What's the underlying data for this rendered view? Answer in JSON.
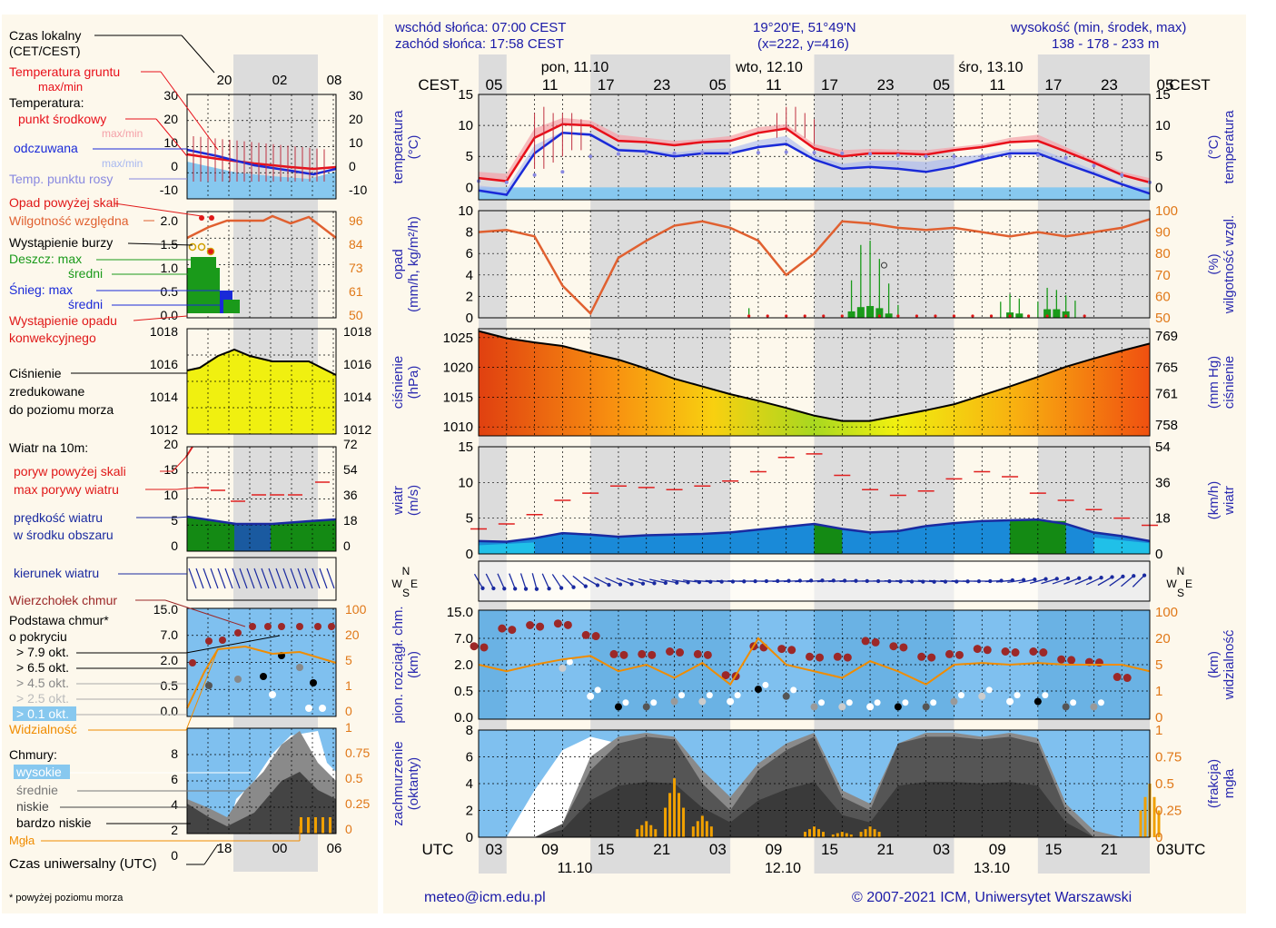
{
  "header": {
    "sunrise": "wschód słońca: 07:00 CEST",
    "sunset": "zachód słońca: 17:58 CEST",
    "coords": "19°20'E, 51°49'N",
    "grid": "(x=222, y=416)",
    "elev_label": "wysokość (min, środek, max)",
    "elev_values": "138 - 178 - 233 m"
  },
  "footer": {
    "email": "meteo@icm.edu.pl",
    "copyright": "© 2007-2021 ICM, Uniwersytet Warszawski",
    "footnote": "* powyżej poziomu morza"
  },
  "colors": {
    "frame_bg": "#fdf8ec",
    "night_band": "#dcdcdc",
    "temp_red": "#e8101a",
    "temp_blue": "#1a2ad8",
    "dew": "#8888e0",
    "humidity": "#e06030",
    "rain": "#1a9a1a",
    "alert_red": "#e01818",
    "wind_dark": "#1a2aa0",
    "cloud_bg": "#7fc0ef",
    "cloud_top": "#9c2828",
    "visibility": "#f08c00",
    "axis_blue": "#2a2ab0",
    "orange_axis": "#e07818"
  },
  "legend": {
    "local_time": [
      "Czas lokalny",
      "(CET/CEST)"
    ],
    "temp_ground": [
      "Temperatura gruntu",
      "max/min"
    ],
    "temperature": "Temperatura:",
    "temp_mid": "punkt środkowy",
    "temp_max": "max/min",
    "feels": "odczuwana",
    "feels_max": "max/min",
    "dew": "Temp. punktu rosy",
    "precip_over": "Opad powyżej skali",
    "humidity": "Wilgotność względna",
    "storm": "Wystąpienie burzy",
    "rain_max": "Deszcz: max",
    "rain_mean": "średni",
    "snow_max": "Śnieg:   max",
    "snow_mean": "średni",
    "convective": [
      "Wystąpienie opadu",
      "konwekcyjnego"
    ],
    "pressure": [
      "Ciśnienie",
      "zredukowane",
      "do poziomu morza"
    ],
    "wind_at": "Wiatr na 10m:",
    "gust_over": "poryw powyżej skali",
    "gust_max": "max porywy wiatru",
    "wind_speed": [
      "prędkość wiatru",
      "w środku obszaru"
    ],
    "wind_dir": "kierunek wiatru",
    "cloud_top": "Wierzchołek chmur",
    "cloud_base": [
      "Podstawa chmur*",
      "o pokryciu"
    ],
    "okt": [
      "> 7.9 okt.",
      "> 6.5 okt.",
      "> 4.5 okt.",
      "> 2.5 okt.",
      "> 0.1 okt."
    ],
    "visibility": "Widzialność",
    "clouds": "Chmury:",
    "cl_high": "wysokie",
    "cl_mid": "średnie",
    "cl_low": "niskie",
    "cl_vlow": "bardzo niskie",
    "fog": "Mgła",
    "utc": "Czas uniwersalny (UTC)"
  },
  "axes": {
    "cest": "CEST",
    "utc": "UTC",
    "local_hours": [
      "05",
      "11",
      "17",
      "23",
      "05",
      "11",
      "17",
      "23",
      "05",
      "11",
      "17",
      "23",
      "05"
    ],
    "utc_hours": [
      "03",
      "09",
      "15",
      "21",
      "03",
      "09",
      "15",
      "21",
      "03",
      "09",
      "15",
      "21",
      "03"
    ],
    "days_top": [
      "pon, 11.10",
      "wto, 12.10",
      "śro, 13.10"
    ],
    "days_bottom": [
      "11.10",
      "12.10",
      "13.10"
    ],
    "legend_local": [
      "20",
      "02",
      "08"
    ],
    "legend_utc": [
      "18",
      "00",
      "06"
    ],
    "temp_left": "temperatura\n(°C)",
    "temp_right": "(°C)\ntemperatura",
    "precip_left": "opad\n(mm/h, kg/m²/h)",
    "precip_right": "(%)\nwilgotność wzgl.",
    "press_left": "ciśnienie\n(hPa)",
    "press_right": "(mm Hg)\nciśnienie",
    "wind_left": "wiatr\n(m/s)",
    "wind_right": "(km/h)\nwiatr",
    "cloudh_left": "pion. rozciągł. chm.\n(km)",
    "cloudh_right": "(km)\nwidzialność",
    "cover_left": "zachmurzenie\n(oktanty)",
    "cover_right": "(frakcja)\nmgła",
    "compass": [
      "N",
      "W",
      "E",
      "S"
    ],
    "temp_ticks": [
      "15",
      "10",
      "5",
      "0"
    ],
    "precip_ticks": [
      "10",
      "8",
      "6",
      "4",
      "2",
      "0"
    ],
    "hum_ticks": [
      "100",
      "90",
      "80",
      "70",
      "60",
      "50"
    ],
    "press_ticks": [
      "1025",
      "1020",
      "1015",
      "1010"
    ],
    "mmhg_ticks": [
      "769",
      "765",
      "761",
      "758"
    ],
    "wind_ticks": [
      "15",
      "10",
      "5",
      "0"
    ],
    "kmh_ticks": [
      "54",
      "36",
      "18",
      "0"
    ],
    "cloudh_ticks": [
      "15.0",
      "7.0",
      "2.0",
      "0.5",
      "0.0"
    ],
    "vis_ticks": [
      "100",
      "20",
      "5",
      "1",
      "0"
    ],
    "cover_ticks": [
      "8",
      "6",
      "4",
      "2",
      "0"
    ],
    "fog_ticks": [
      "1",
      "0.75",
      "0.5",
      "0.25",
      "0"
    ],
    "lg_temp_l": [
      "30",
      "20",
      "10",
      "0",
      "-10"
    ],
    "lg_temp_r": [
      "30",
      "20",
      "10",
      "0",
      "-10"
    ],
    "lg_prec_l": [
      "2.0",
      "1.5",
      "1.0",
      "0.5",
      "0.0"
    ],
    "lg_prec_r": [
      "96",
      "84",
      "73",
      "61",
      "50"
    ],
    "lg_press_l": [
      "1018",
      "1016",
      "1014",
      "1012"
    ],
    "lg_press_r": [
      "1018",
      "1016",
      "1014",
      "1012"
    ],
    "lg_wind_l": [
      "20",
      "15",
      "10",
      "5",
      "0"
    ],
    "lg_wind_r": [
      "72",
      "54",
      "36",
      "18",
      "0"
    ],
    "lg_cloudh_l": [
      "15.0",
      "7.0",
      "2.0",
      "0.5",
      "0.0"
    ],
    "lg_cloudh_r": [
      "100",
      "20",
      "5",
      "1",
      "0"
    ],
    "lg_cover_l": [
      "8",
      "6",
      "4",
      "2",
      "0"
    ],
    "lg_cover_r": [
      "1",
      "0.75",
      "0.5",
      "0.25",
      "0"
    ]
  },
  "chart_data": [
    {
      "type": "line",
      "panel": "temperature",
      "unit": "°C",
      "ylim": [
        -2,
        15
      ],
      "x_hours_utc": [
        0,
        3,
        6,
        9,
        12,
        15,
        18,
        21,
        24,
        27,
        30,
        33,
        36,
        39,
        42,
        45,
        48,
        51,
        54,
        57,
        60,
        63,
        66,
        69,
        72
      ],
      "series": [
        {
          "name": "max",
          "values": [
            2.5,
            2.2,
            9.5,
            11.2,
            10.8,
            8.5,
            8.0,
            7.5,
            7.8,
            8.3,
            9.7,
            10.2,
            7.0,
            6.0,
            6.2,
            6.1,
            6.0,
            6.5,
            7.0,
            8.0,
            8.5,
            6.5,
            4.5,
            2.5,
            1.5
          ]
        },
        {
          "name": "punkt środkowy",
          "values": [
            1.5,
            1.0,
            8.0,
            10.2,
            10.0,
            7.5,
            7.3,
            6.8,
            7.3,
            7.5,
            8.8,
            9.5,
            6.3,
            5.0,
            5.5,
            5.5,
            5.3,
            6.0,
            6.5,
            7.3,
            7.5,
            5.8,
            4.0,
            2.0,
            0.8
          ]
        },
        {
          "name": "odczuwana",
          "values": [
            -0.5,
            -1.2,
            5.5,
            8.8,
            8.5,
            6.0,
            5.8,
            5.0,
            5.5,
            5.5,
            6.5,
            7.0,
            4.5,
            3.0,
            3.3,
            3.0,
            2.5,
            3.3,
            4.5,
            5.5,
            5.5,
            3.8,
            2.2,
            0.5,
            -1.0
          ]
        },
        {
          "name": "Temp. punktu rosy",
          "values": [
            1.0,
            0.8,
            2.0,
            2.5,
            5.0,
            5.4,
            5.5,
            5.5,
            5.6,
            5.6,
            5.6,
            5.7,
            5.6,
            5.5,
            5.4,
            5.2,
            5.0,
            5.0,
            5.0,
            5.0,
            5.2,
            4.8,
            3.5,
            2.0,
            0.8
          ]
        }
      ],
      "precip_bars": [
        {
          "h": 42,
          "v": 0.15
        },
        {
          "h": 50,
          "v": 0.1
        },
        {
          "h": 52,
          "v": 0.08
        }
      ]
    },
    {
      "type": "line",
      "panel": "precipitation",
      "unit": "mm/h",
      "ylim": [
        0,
        10
      ],
      "y2": "wilgotność %",
      "y2lim": [
        50,
        100
      ],
      "x_hours_utc": [
        0,
        3,
        6,
        9,
        12,
        15,
        18,
        21,
        24,
        27,
        30,
        33,
        36,
        39,
        42,
        45,
        48,
        51,
        54,
        57,
        60,
        63,
        66,
        69,
        72
      ],
      "series": [
        {
          "name": "Wilgotność względna",
          "values": [
            90,
            91,
            88,
            65,
            52,
            78,
            86,
            93,
            95,
            92,
            86,
            70,
            80,
            95,
            94,
            92,
            91,
            92,
            90,
            88,
            90,
            88,
            90,
            92,
            96
          ]
        },
        {
          "name": "Deszcz: max",
          "values_sparse": {
            "29": 0.9,
            "40": 3.5,
            "41": 6.8,
            "42": 7.2,
            "43": 5.5,
            "44": 3.2,
            "45": 1.2,
            "56": 1.5,
            "57": 2.2,
            "58": 1.8,
            "60": 1.5,
            "61": 2.8,
            "62": 2.6,
            "63": 2.1,
            "64": 1.6
          }
        },
        {
          "name": "Deszcz: średni",
          "values_sparse": {
            "40": 0.6,
            "41": 1.0,
            "42": 1.1,
            "43": 0.9,
            "44": 0.4,
            "57": 0.5,
            "58": 0.4,
            "61": 0.8,
            "62": 0.8,
            "63": 0.6
          }
        }
      ]
    },
    {
      "type": "area",
      "panel": "pressure",
      "unit": "hPa",
      "ylim": [
        1008.5,
        1026.5
      ],
      "x_hours_utc": [
        0,
        3,
        6,
        9,
        12,
        15,
        18,
        21,
        24,
        27,
        30,
        33,
        36,
        39,
        42,
        45,
        48,
        51,
        54,
        57,
        60,
        63,
        66,
        69,
        72
      ],
      "values": [
        1026.1,
        1024.9,
        1024.2,
        1023.6,
        1022.4,
        1021.3,
        1019.8,
        1018.1,
        1016.8,
        1015.5,
        1014.4,
        1013.2,
        1011.9,
        1011.0,
        1011.0,
        1011.9,
        1012.8,
        1013.8,
        1015.3,
        1016.8,
        1018.4,
        1020.1,
        1021.5,
        1022.8,
        1024.0
      ]
    },
    {
      "type": "area",
      "panel": "wind",
      "unit": "m/s",
      "ylim": [
        0,
        15
      ],
      "x_hours_utc": [
        0,
        3,
        6,
        9,
        12,
        15,
        18,
        21,
        24,
        27,
        30,
        33,
        36,
        39,
        42,
        45,
        48,
        51,
        54,
        57,
        60,
        63,
        66,
        69,
        72
      ],
      "series": [
        {
          "name": "prędkość wiatru",
          "values": [
            1.8,
            1.7,
            2.2,
            2.9,
            2.7,
            2.4,
            2.6,
            2.7,
            2.8,
            3.0,
            3.4,
            3.8,
            4.2,
            3.5,
            3.0,
            3.2,
            3.9,
            4.3,
            4.6,
            4.7,
            4.8,
            4.2,
            3.0,
            2.5,
            1.8
          ]
        },
        {
          "name": "max porywy wiatru",
          "values": [
            3.5,
            4.2,
            5.5,
            7.5,
            8.5,
            9.5,
            9.3,
            9.0,
            9.5,
            10.2,
            11.5,
            13.5,
            14.0,
            11.0,
            9.0,
            8.2,
            8.8,
            10.5,
            11.5,
            10.8,
            8.5,
            7.5,
            6.2,
            5.0,
            4.0
          ]
        }
      ]
    },
    {
      "type": "scatter",
      "panel": "wind_direction",
      "unit": "deg",
      "x_hours_utc": [
        0,
        6,
        12,
        18,
        24,
        30,
        36,
        42,
        48,
        54,
        60,
        66,
        72
      ],
      "values": [
        330,
        345,
        300,
        285,
        275,
        270,
        265,
        270,
        275,
        270,
        255,
        245,
        220
      ]
    },
    {
      "type": "scatter",
      "panel": "cloud_height",
      "unit": "km",
      "ylim": [
        0,
        15
      ],
      "y2": "widzialność km",
      "y2lim": [
        0,
        100
      ],
      "x_hours_utc": [
        0,
        3,
        6,
        9,
        12,
        15,
        18,
        21,
        24,
        27,
        30,
        33,
        36,
        39,
        42,
        45,
        48,
        51,
        54,
        57,
        60,
        63,
        66,
        69,
        72
      ],
      "series": [
        {
          "name": "Wierzchołek chmur",
          "values": [
            5.5,
            10.0,
            11.0,
            11.5,
            8.0,
            4.0,
            4.0,
            4.5,
            4.0,
            1.4,
            5.5,
            5.0,
            3.5,
            3.5,
            6.5,
            5.5,
            3.5,
            4.0,
            5.0,
            4.5,
            4.5,
            3.0,
            2.5,
            1.3,
            0.2
          ]
        },
        {
          "name": "Podstawa chmur",
          "values": [
            2.0,
            1.5,
            2.0,
            1.8,
            0.4,
            0.2,
            0.2,
            0.3,
            0.3,
            0.3,
            0.6,
            0.4,
            0.2,
            0.2,
            0.2,
            0.2,
            0.2,
            0.3,
            0.4,
            0.3,
            0.3,
            0.2,
            0.2,
            0.3,
            0.3
          ]
        },
        {
          "name": "Widzialność",
          "values": [
            5,
            4,
            5,
            8,
            10,
            4,
            5,
            3,
            6,
            2,
            20,
            5,
            4,
            3,
            7,
            4,
            2,
            5,
            6,
            5,
            6,
            5,
            5,
            5,
            4
          ]
        }
      ]
    },
    {
      "type": "area",
      "panel": "cloud_cover",
      "unit": "oktanty",
      "ylim": [
        0,
        8
      ],
      "y2": "mgła",
      "y2lim": [
        0,
        1
      ],
      "x_hours_utc": [
        0,
        3,
        6,
        9,
        12,
        15,
        18,
        21,
        24,
        27,
        30,
        33,
        36,
        39,
        42,
        45,
        48,
        51,
        54,
        57,
        60,
        63,
        66,
        69,
        72
      ],
      "series": [
        {
          "name": "niskie",
          "values": [
            0,
            0,
            0,
            1,
            5,
            7,
            7.5,
            7.3,
            4,
            2,
            5,
            6.5,
            7.5,
            3,
            2,
            7,
            7.5,
            7.5,
            7.3,
            7.5,
            7,
            2,
            0,
            0,
            0
          ]
        },
        {
          "name": "średnie",
          "values": [
            0,
            0,
            0,
            1,
            6,
            7.5,
            7.8,
            7.5,
            5,
            3,
            5.5,
            7,
            7.8,
            3.5,
            2.5,
            7,
            7.8,
            7.8,
            7.5,
            7.8,
            7.4,
            2.5,
            0.5,
            0,
            0
          ]
        },
        {
          "name": "wysokie",
          "values": [
            0,
            0,
            3.5,
            6.5,
            7.5,
            7,
            6.5,
            6,
            3,
            1,
            3,
            5,
            6,
            2,
            1,
            5,
            7,
            7,
            7,
            7,
            6,
            1,
            0,
            0,
            0
          ]
        },
        {
          "name": "Mgła",
          "values": [
            0,
            0,
            0,
            0,
            0,
            0,
            0.15,
            0.55,
            0.2,
            0,
            0,
            0,
            0.1,
            0.05,
            0.1,
            0,
            0,
            0,
            0,
            0,
            0,
            0,
            0,
            0,
            0.5
          ]
        }
      ]
    }
  ]
}
